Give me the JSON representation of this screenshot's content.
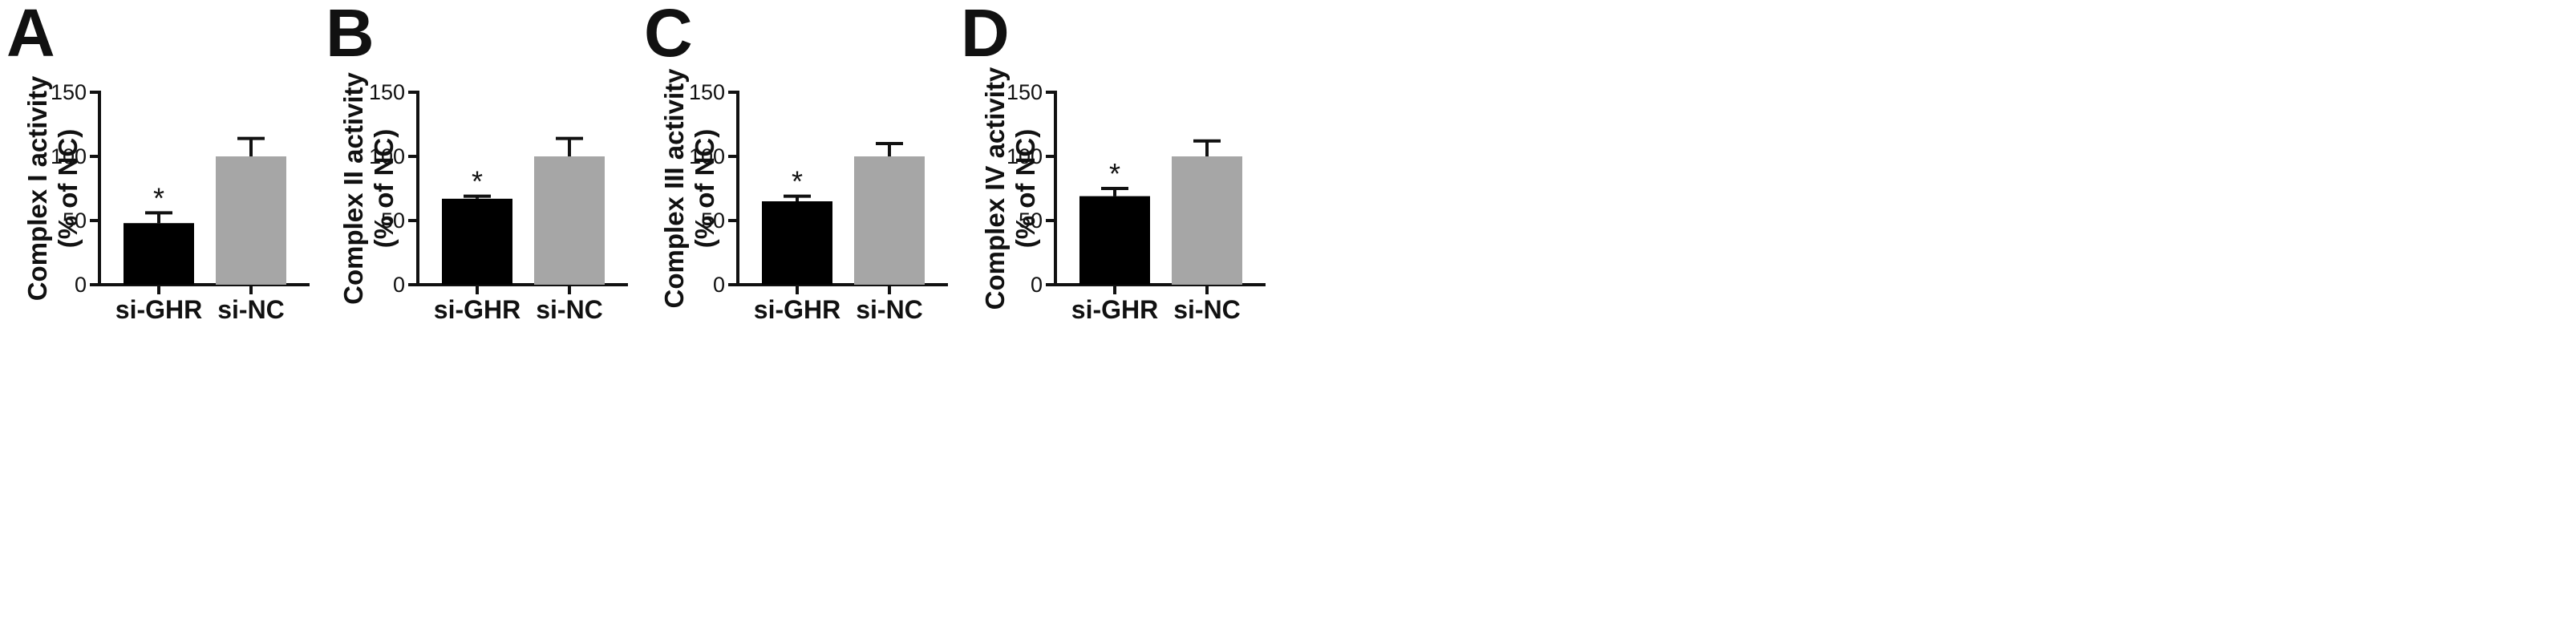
{
  "chart_data": [
    {
      "type": "bar",
      "panel": "A",
      "ylabel": [
        "Complex I activity",
        "(% of NC)"
      ],
      "categories": [
        "si-GHR",
        "si-NC"
      ],
      "values": [
        48,
        100
      ],
      "errors": [
        8,
        14
      ],
      "colors": [
        "#000000",
        "#a6a6a6"
      ],
      "significance": [
        "*",
        ""
      ],
      "ylim": [
        0,
        150
      ],
      "yticks": [
        0,
        50,
        100,
        150
      ],
      "grid": false,
      "legend": "none"
    },
    {
      "type": "bar",
      "panel": "B",
      "ylabel": [
        "Complex II activity",
        "(% of NC)"
      ],
      "categories": [
        "si-GHR",
        "si-NC"
      ],
      "values": [
        67,
        100
      ],
      "errors": [
        2,
        14
      ],
      "colors": [
        "#000000",
        "#a6a6a6"
      ],
      "significance": [
        "*",
        ""
      ],
      "ylim": [
        0,
        150
      ],
      "yticks": [
        0,
        50,
        100,
        150
      ],
      "grid": false,
      "legend": "none"
    },
    {
      "type": "bar",
      "panel": "C",
      "ylabel": [
        "Complex III activity",
        "(% of NC)"
      ],
      "categories": [
        "si-GHR",
        "si-NC"
      ],
      "values": [
        65,
        100
      ],
      "errors": [
        4,
        10
      ],
      "colors": [
        "#000000",
        "#a6a6a6"
      ],
      "significance": [
        "*",
        ""
      ],
      "ylim": [
        0,
        150
      ],
      "yticks": [
        0,
        50,
        100,
        150
      ],
      "grid": false,
      "legend": "none"
    },
    {
      "type": "bar",
      "panel": "D",
      "ylabel": [
        "Complex IV activity",
        "(% of NC)"
      ],
      "categories": [
        "si-GHR",
        "si-NC"
      ],
      "values": [
        69,
        100
      ],
      "errors": [
        6,
        12
      ],
      "colors": [
        "#000000",
        "#a6a6a6"
      ],
      "significance": [
        "*",
        ""
      ],
      "ylim": [
        0,
        150
      ],
      "yticks": [
        0,
        50,
        100,
        150
      ],
      "grid": false,
      "legend": "none"
    }
  ]
}
